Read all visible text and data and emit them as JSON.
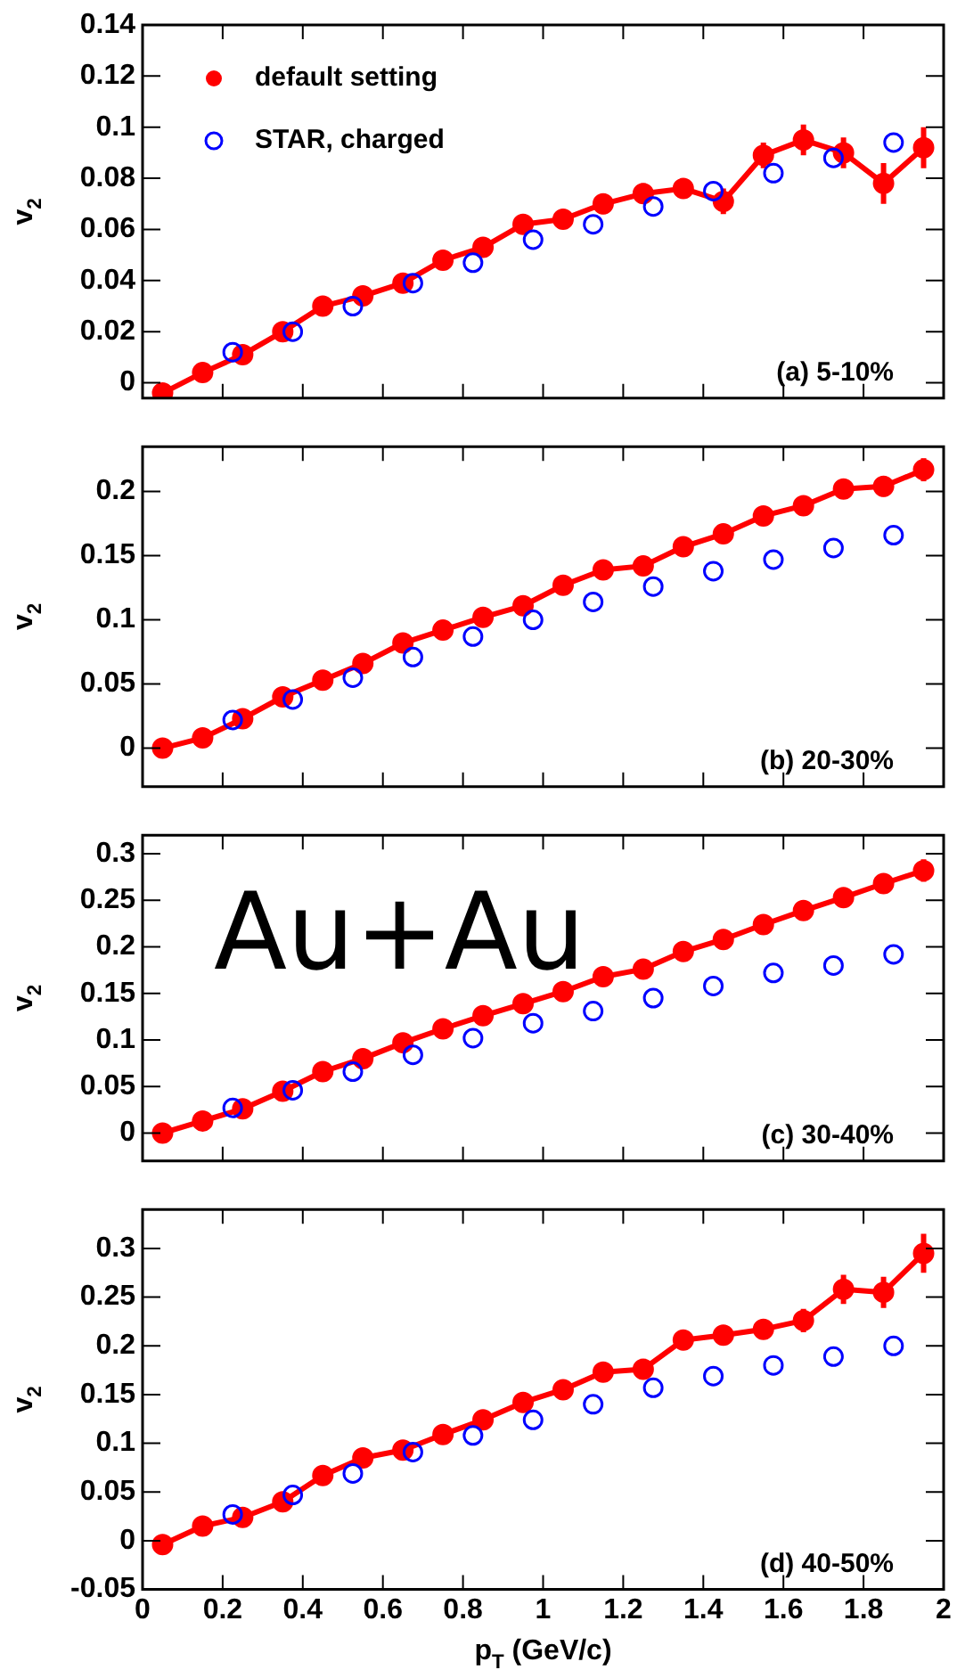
{
  "chart_data": [
    {
      "type": "line",
      "title": "(a) 5-10%",
      "ylabel": "v$_{2}$",
      "xlim": [
        0,
        2
      ],
      "xticks": [
        0,
        0.2,
        0.4,
        0.6,
        0.8,
        1,
        1.2,
        1.4,
        1.6,
        1.8,
        2
      ],
      "ylim": [
        -0.006,
        0.14
      ],
      "yticks": [
        0,
        0.02,
        0.04,
        0.06,
        0.08,
        0.1,
        0.12,
        0.14
      ],
      "tick_labels": "y",
      "grid": false,
      "legend": "top left",
      "marker": "circle",
      "series": [
        {
          "name": "default setting",
          "color": "#ff0000",
          "x": [
            0.05,
            0.15,
            0.25,
            0.35,
            0.45,
            0.55,
            0.65,
            0.75,
            0.85,
            0.95,
            1.05,
            1.15,
            1.25,
            1.35,
            1.45,
            1.55,
            1.65,
            1.75,
            1.85,
            1.95
          ],
          "values": [
            -0.004,
            0.004,
            0.011,
            0.02,
            0.03,
            0.034,
            0.039,
            0.048,
            0.053,
            0.062,
            0.064,
            0.07,
            0.074,
            0.076,
            0.071,
            0.089,
            0.095,
            0.09,
            0.078,
            0.092
          ],
          "errors": [
            0.003,
            0.002,
            0.002,
            0.002,
            0.002,
            0.002,
            0.002,
            0.002,
            0.002,
            0.002,
            0.002,
            0.004,
            0.004,
            0.004,
            0.005,
            0.005,
            0.006,
            0.006,
            0.008,
            0.008
          ]
        },
        {
          "name": "STAR, charged",
          "type": "scatter",
          "color": "#0000ff",
          "x": [
            0.225,
            0.375,
            0.525,
            0.675,
            0.825,
            0.975,
            1.125,
            1.275,
            1.425,
            1.575,
            1.725,
            1.875
          ],
          "values": [
            0.012,
            0.02,
            0.03,
            0.039,
            0.047,
            0.056,
            0.062,
            0.069,
            0.075,
            0.082,
            0.088,
            0.094
          ]
        }
      ]
    },
    {
      "type": "line",
      "title": "(b) 20-30%",
      "ylabel": "v$_{2}$",
      "xlim": [
        0,
        2
      ],
      "xticks": [
        0,
        0.2,
        0.4,
        0.6,
        0.8,
        1,
        1.2,
        1.4,
        1.6,
        1.8,
        2
      ],
      "ylim": [
        -0.03,
        0.235
      ],
      "yticks": [
        0,
        0.05,
        0.1,
        0.15,
        0.2
      ],
      "tick_labels": "y",
      "grid": false,
      "marker": "circle",
      "series": [
        {
          "color": "#ff0000",
          "x": [
            0.05,
            0.15,
            0.25,
            0.35,
            0.45,
            0.55,
            0.65,
            0.75,
            0.85,
            0.95,
            1.05,
            1.15,
            1.25,
            1.35,
            1.45,
            1.55,
            1.65,
            1.75,
            1.85,
            1.95
          ],
          "values": [
            0,
            0.008,
            0.023,
            0.04,
            0.053,
            0.066,
            0.082,
            0.092,
            0.102,
            0.111,
            0.127,
            0.139,
            0.142,
            0.157,
            0.167,
            0.181,
            0.189,
            0.202,
            0.204,
            0.217
          ],
          "errors": [
            0.002,
            0.002,
            0.002,
            0.002,
            0.002,
            0.002,
            0.002,
            0.002,
            0.002,
            0.002,
            0.003,
            0.003,
            0.003,
            0.003,
            0.004,
            0.004,
            0.004,
            0.007,
            0.008,
            0.009
          ]
        },
        {
          "type": "scatter",
          "color": "#0000ff",
          "x": [
            0.225,
            0.375,
            0.525,
            0.675,
            0.825,
            0.975,
            1.125,
            1.275,
            1.425,
            1.575,
            1.725,
            1.875
          ],
          "values": [
            0.022,
            0.038,
            0.055,
            0.071,
            0.087,
            0.1,
            0.114,
            0.126,
            0.138,
            0.147,
            0.156,
            0.166
          ]
        }
      ]
    },
    {
      "type": "line",
      "title": "(c) 30-40%",
      "ylabel": "v$_{2}$",
      "annotations": [
        "Au+Au"
      ],
      "xlim": [
        0,
        2
      ],
      "xticks": [
        0,
        0.2,
        0.4,
        0.6,
        0.8,
        1,
        1.2,
        1.4,
        1.6,
        1.8,
        2
      ],
      "ylim": [
        -0.03,
        0.32
      ],
      "yticks": [
        0,
        0.05,
        0.1,
        0.15,
        0.2,
        0.25,
        0.3
      ],
      "tick_labels": "y",
      "grid": false,
      "marker": "circle",
      "series": [
        {
          "color": "#ff0000",
          "x": [
            0.05,
            0.15,
            0.25,
            0.35,
            0.45,
            0.55,
            0.65,
            0.75,
            0.85,
            0.95,
            1.05,
            1.15,
            1.25,
            1.35,
            1.45,
            1.55,
            1.65,
            1.75,
            1.85,
            1.95
          ],
          "values": [
            0,
            0.013,
            0.026,
            0.045,
            0.066,
            0.08,
            0.097,
            0.112,
            0.126,
            0.139,
            0.152,
            0.168,
            0.176,
            0.195,
            0.208,
            0.224,
            0.239,
            0.253,
            0.268,
            0.282
          ],
          "errors": [
            0.002,
            0.002,
            0.002,
            0.002,
            0.002,
            0.002,
            0.002,
            0.002,
            0.003,
            0.003,
            0.003,
            0.003,
            0.003,
            0.004,
            0.004,
            0.005,
            0.008,
            0.009,
            0.01,
            0.012
          ]
        },
        {
          "type": "scatter",
          "color": "#0000ff",
          "x": [
            0.225,
            0.375,
            0.525,
            0.675,
            0.825,
            0.975,
            1.125,
            1.275,
            1.425,
            1.575,
            1.725,
            1.875
          ],
          "values": [
            0.027,
            0.046,
            0.066,
            0.084,
            0.102,
            0.118,
            0.131,
            0.145,
            0.158,
            0.172,
            0.18,
            0.192
          ]
        }
      ]
    },
    {
      "type": "line",
      "title": "(d) 40-50%",
      "xlabel": "p$_{T}$ (GeV/c)",
      "ylabel": "v$_{2}$",
      "xlim": [
        0,
        2
      ],
      "xticks": [
        0,
        0.2,
        0.4,
        0.6,
        0.8,
        1,
        1.2,
        1.4,
        1.6,
        1.8,
        2
      ],
      "ylim": [
        -0.05,
        0.34
      ],
      "yticks": [
        -0.05,
        0,
        0.05,
        0.1,
        0.15,
        0.2,
        0.25,
        0.3
      ],
      "grid": false,
      "marker": "circle",
      "series": [
        {
          "color": "#ff0000",
          "x": [
            0.05,
            0.15,
            0.25,
            0.35,
            0.45,
            0.55,
            0.65,
            0.75,
            0.85,
            0.95,
            1.05,
            1.15,
            1.25,
            1.35,
            1.45,
            1.55,
            1.65,
            1.75,
            1.85,
            1.95
          ],
          "values": [
            -0.004,
            0.015,
            0.024,
            0.04,
            0.067,
            0.085,
            0.093,
            0.109,
            0.124,
            0.142,
            0.155,
            0.173,
            0.176,
            0.206,
            0.211,
            0.217,
            0.226,
            0.258,
            0.255,
            0.295
          ],
          "errors": [
            0.003,
            0.003,
            0.003,
            0.003,
            0.003,
            0.003,
            0.003,
            0.003,
            0.004,
            0.004,
            0.004,
            0.005,
            0.005,
            0.01,
            0.01,
            0.01,
            0.012,
            0.015,
            0.016,
            0.02
          ]
        },
        {
          "type": "scatter",
          "color": "#0000ff",
          "x": [
            0.225,
            0.375,
            0.525,
            0.675,
            0.825,
            0.975,
            1.125,
            1.275,
            1.425,
            1.575,
            1.725,
            1.875
          ],
          "values": [
            0.027,
            0.047,
            0.069,
            0.091,
            0.108,
            0.124,
            0.14,
            0.157,
            0.169,
            0.18,
            0.189,
            0.2
          ]
        }
      ]
    }
  ]
}
